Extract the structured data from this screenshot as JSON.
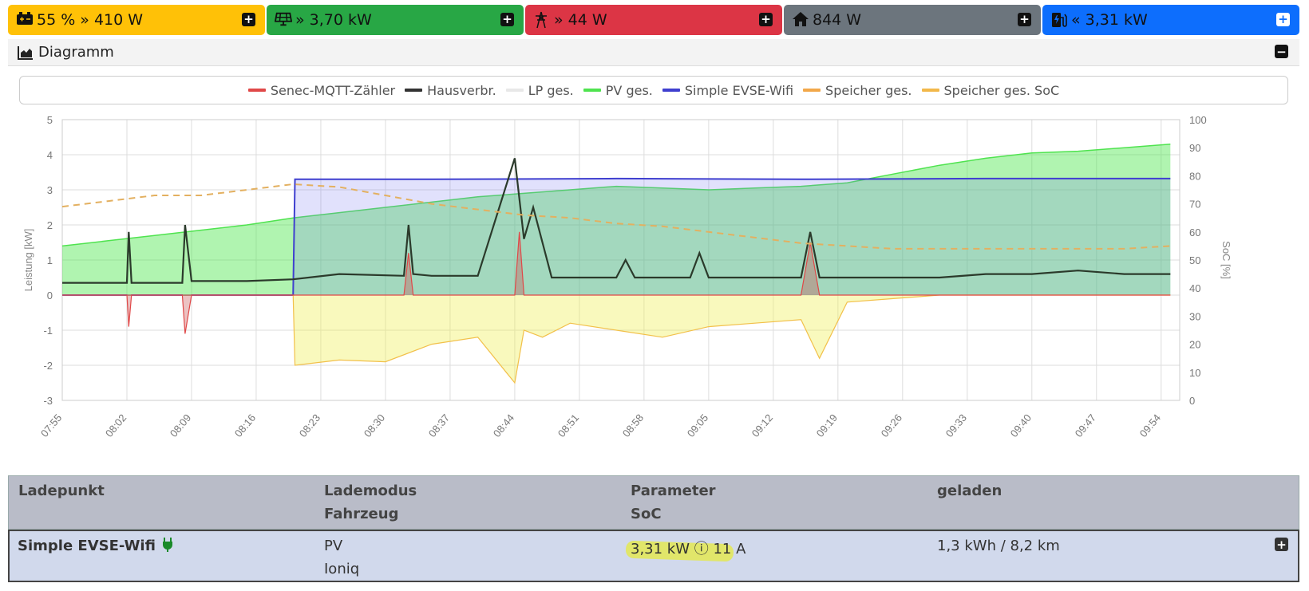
{
  "status_tiles": [
    {
      "name": "battery",
      "icon": "battery-icon",
      "text": "55 % » 410 W",
      "bg": "#ffc107",
      "fg": "#111"
    },
    {
      "name": "pv",
      "icon": "solar-panel-icon",
      "text": "» 3,70 kW",
      "bg": "#28a745",
      "fg": "#111"
    },
    {
      "name": "grid",
      "icon": "power-pylon-icon",
      "text": "» 44 W",
      "bg": "#dc3545",
      "fg": "#111"
    },
    {
      "name": "house",
      "icon": "house-icon",
      "text": "844 W",
      "bg": "#6c757d",
      "fg": "#111"
    },
    {
      "name": "chargepoint",
      "icon": "charging-station-icon",
      "text": "« 3,31 kW",
      "bg": "#0d6efd",
      "fg": "#111"
    }
  ],
  "diagram": {
    "title": "Diagramm"
  },
  "legend": [
    {
      "label": "Senec-MQTT-Zähler",
      "color": "#e04848"
    },
    {
      "label": "Hausverbr.",
      "color": "#333333"
    },
    {
      "label": "LP ges.",
      "color": "#e8e8e8"
    },
    {
      "label": "PV ges.",
      "color": "#4fe34f"
    },
    {
      "label": "Simple EVSE-Wifi",
      "color": "#3f3fcf"
    },
    {
      "label": "Speicher ges.",
      "color": "#f2a84a"
    },
    {
      "label": "Speicher ges. SoC",
      "color": "#f2b84a"
    }
  ],
  "chart_data": {
    "type": "line",
    "ylabel": "Leistung [kW]",
    "y2label": "SoC [%]",
    "ylim": [
      -3,
      5
    ],
    "y2lim": [
      0,
      100
    ],
    "y_ticks": [
      "5",
      "4",
      "3",
      "2",
      "1",
      "0",
      "-1",
      "-2",
      "-3"
    ],
    "y2_ticks": [
      "100",
      "90",
      "80",
      "70",
      "60",
      "50",
      "40",
      "30",
      "20",
      "10",
      "0"
    ],
    "x_ticks": [
      "07:55",
      "08:02",
      "08:09",
      "08:16",
      "08:23",
      "08:30",
      "08:37",
      "08:44",
      "08:51",
      "08:58",
      "09:05",
      "09:12",
      "09:19",
      "09:26",
      "09:33",
      "09:40",
      "09:47",
      "09:54"
    ],
    "x_minutes": [
      0,
      120
    ],
    "series": [
      {
        "name": "PV ges.",
        "x": [
          0,
          5,
          10,
          15,
          20,
          25,
          30,
          35,
          40,
          45,
          50,
          55,
          60,
          65,
          70,
          75,
          80,
          85,
          90,
          95,
          100,
          105,
          110,
          115,
          120
        ],
        "values": [
          1.4,
          1.55,
          1.7,
          1.85,
          2.0,
          2.2,
          2.35,
          2.5,
          2.65,
          2.8,
          2.9,
          3.0,
          3.1,
          3.05,
          3.0,
          3.05,
          3.1,
          3.2,
          3.45,
          3.7,
          3.9,
          4.05,
          4.1,
          4.2,
          4.3
        ]
      },
      {
        "name": "Simple EVSE-Wifi",
        "x": [
          0,
          25,
          25.2,
          40,
          60,
          80,
          100,
          120
        ],
        "values": [
          0,
          0,
          3.3,
          3.3,
          3.32,
          3.3,
          3.32,
          3.32
        ]
      },
      {
        "name": "Hausverbr.",
        "x": [
          0,
          7,
          7.2,
          7.5,
          13,
          13.3,
          14,
          20,
          25,
          30,
          37,
          37.5,
          38,
          40,
          45,
          49,
          50,
          51,
          53,
          55,
          60,
          61,
          62,
          68,
          69,
          70,
          80,
          81,
          82,
          90,
          95,
          100,
          105,
          110,
          115,
          120
        ],
        "values": [
          0.35,
          0.35,
          1.8,
          0.35,
          0.35,
          2.0,
          0.4,
          0.4,
          0.45,
          0.6,
          0.55,
          2.0,
          0.6,
          0.55,
          0.55,
          3.9,
          1.6,
          2.5,
          0.5,
          0.5,
          0.5,
          1.0,
          0.5,
          0.5,
          1.2,
          0.5,
          0.5,
          1.8,
          0.5,
          0.5,
          0.5,
          0.6,
          0.6,
          0.7,
          0.6,
          0.6
        ]
      },
      {
        "name": "Senec-MQTT-Zähler",
        "x": [
          0,
          7,
          7.2,
          7.5,
          13,
          13.3,
          14,
          37,
          37.5,
          38,
          49,
          49.5,
          50,
          80,
          81,
          82,
          120
        ],
        "values": [
          0,
          0,
          -0.9,
          0,
          0,
          -1.1,
          0,
          0,
          1.2,
          0,
          0,
          1.8,
          0,
          0,
          1.5,
          0,
          0
        ]
      },
      {
        "name": "Speicher ges.",
        "x": [
          0,
          25,
          25.2,
          30,
          35,
          40,
          45,
          49,
          50,
          52,
          55,
          60,
          65,
          70,
          75,
          80,
          82,
          85,
          90,
          95,
          100,
          120
        ],
        "values": [
          0,
          0,
          -2.0,
          -1.85,
          -1.9,
          -1.4,
          -1.2,
          -2.5,
          -1.0,
          -1.2,
          -0.8,
          -1.0,
          -1.2,
          -0.9,
          -0.8,
          -0.7,
          -1.8,
          -0.2,
          -0.1,
          0,
          0,
          0
        ]
      },
      {
        "name": "Speicher ges. SoC",
        "x": [
          0,
          5,
          10,
          15,
          20,
          25,
          30,
          35,
          40,
          45,
          50,
          55,
          60,
          65,
          70,
          75,
          80,
          85,
          90,
          95,
          100,
          105,
          110,
          115,
          120
        ],
        "values": [
          69,
          71,
          73,
          73,
          75,
          77,
          76,
          73,
          70,
          68,
          66,
          65,
          63,
          62,
          60,
          58,
          56,
          55,
          54,
          54,
          54,
          54,
          54,
          54,
          55
        ],
        "axis": "y2"
      }
    ]
  },
  "table": {
    "headers": [
      {
        "line1": "Ladepunkt",
        "line2": ""
      },
      {
        "line1": "Lademodus",
        "line2": "Fahrzeug"
      },
      {
        "line1": "Parameter",
        "line2": "SoC"
      },
      {
        "line1": "geladen",
        "line2": ""
      }
    ],
    "row": {
      "ladepunkt": "Simple EVSE-Wifi",
      "mode": "PV",
      "vehicle": "Ioniq",
      "parameter": "3,31 kW ⓘ 11 A",
      "geladen": "1,3 kWh / 8,2 km"
    }
  }
}
